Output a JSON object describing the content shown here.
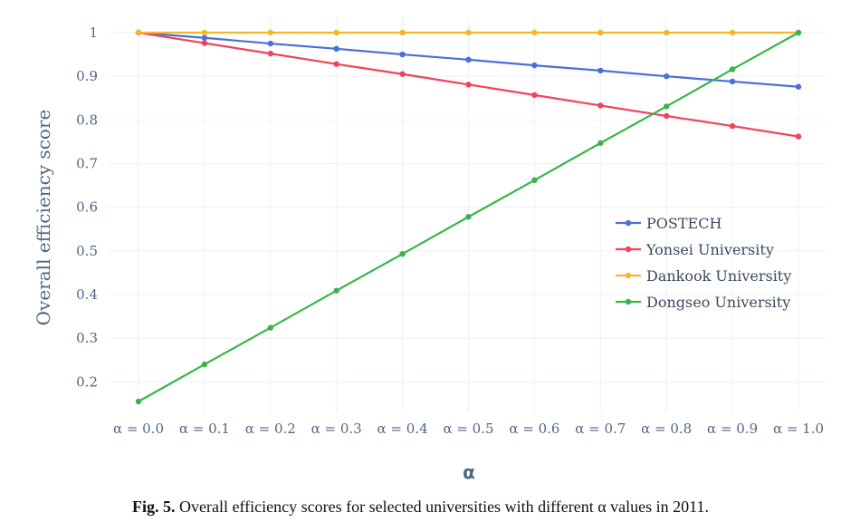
{
  "caption": {
    "label": "Fig. 5.",
    "text": "Overall efficiency scores for selected universities with different α values in 2011."
  },
  "chart_data": {
    "type": "line",
    "categories": [
      "α = 0.0",
      "α = 0.1",
      "α = 0.2",
      "α = 0.3",
      "α = 0.4",
      "α = 0.5",
      "α = 0.6",
      "α = 0.7",
      "α = 0.8",
      "α = 0.9",
      "α = 1.0"
    ],
    "xlabel": "α",
    "ylabel": "Overall efficiency score",
    "ylim": [
      0.15,
      1.0
    ],
    "yticks": [
      "0.2",
      "0.3",
      "0.4",
      "0.5",
      "0.6",
      "0.7",
      "0.8",
      "0.9",
      "1"
    ],
    "ytick_values": [
      0.2,
      0.3,
      0.4,
      0.5,
      0.6,
      0.7,
      0.8,
      0.9,
      1.0
    ],
    "grid": true,
    "legend_position": "right",
    "series": [
      {
        "name": "POSTECH",
        "color": "#4a6fd8",
        "values": [
          1.0,
          0.988,
          0.975,
          0.963,
          0.95,
          0.938,
          0.925,
          0.913,
          0.9,
          0.888,
          0.876
        ]
      },
      {
        "name": "Yonsei University",
        "color": "#f0435c",
        "values": [
          1.0,
          0.976,
          0.952,
          0.928,
          0.905,
          0.881,
          0.857,
          0.833,
          0.809,
          0.786,
          0.762
        ]
      },
      {
        "name": "Dankook University",
        "color": "#f5b62b",
        "values": [
          1.0,
          1.0,
          1.0,
          1.0,
          1.0,
          1.0,
          1.0,
          1.0,
          1.0,
          1.0,
          1.0
        ]
      },
      {
        "name": "Dongseo University",
        "color": "#3ab54a",
        "values": [
          0.155,
          0.24,
          0.324,
          0.409,
          0.493,
          0.578,
          0.662,
          0.747,
          0.831,
          0.916,
          1.0
        ]
      }
    ]
  }
}
